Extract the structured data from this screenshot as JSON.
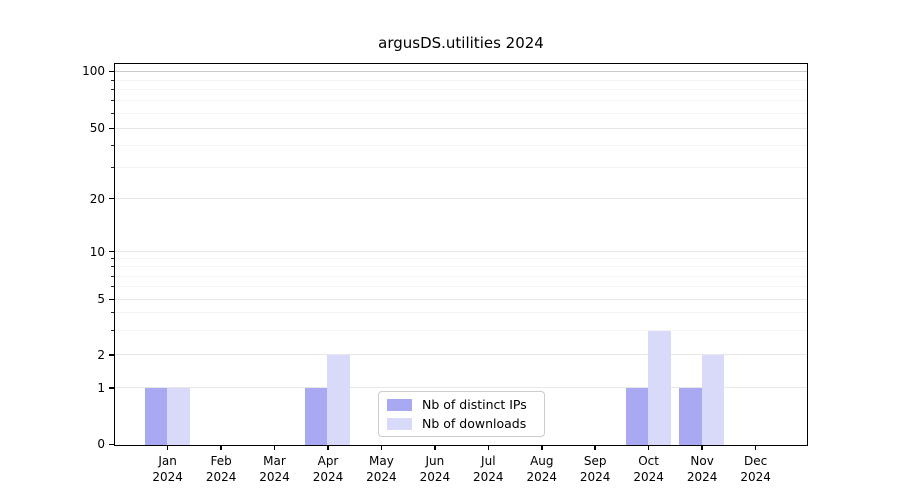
{
  "figure": {
    "background": "#ffffff"
  },
  "chart_data": {
    "type": "bar",
    "title": "argusDS.utilities 2024",
    "categories": [
      {
        "month": "Jan",
        "year": "2024"
      },
      {
        "month": "Feb",
        "year": "2024"
      },
      {
        "month": "Mar",
        "year": "2024"
      },
      {
        "month": "Apr",
        "year": "2024"
      },
      {
        "month": "May",
        "year": "2024"
      },
      {
        "month": "Jun",
        "year": "2024"
      },
      {
        "month": "Jul",
        "year": "2024"
      },
      {
        "month": "Aug",
        "year": "2024"
      },
      {
        "month": "Sep",
        "year": "2024"
      },
      {
        "month": "Oct",
        "year": "2024"
      },
      {
        "month": "Nov",
        "year": "2024"
      },
      {
        "month": "Dec",
        "year": "2024"
      }
    ],
    "series": [
      {
        "name": "Nb of distinct IPs",
        "color": "#a9a9f3",
        "values": [
          1,
          0,
          0,
          1,
          0,
          0,
          0,
          0,
          0,
          1,
          1,
          0
        ]
      },
      {
        "name": "Nb of downloads",
        "color": "#d9d9f9",
        "values": [
          1,
          0,
          0,
          2,
          0,
          0,
          0,
          0,
          0,
          3,
          2,
          0
        ]
      }
    ],
    "ylim": [
      0,
      100
    ],
    "y_axis": {
      "scale": "log-like",
      "ticks": [
        0,
        1,
        2,
        5,
        10,
        20,
        50,
        100
      ],
      "minor_ticks": [
        3,
        4,
        6,
        7,
        8,
        9,
        30,
        40,
        60,
        70,
        80,
        90
      ],
      "scale_anchors": [
        [
          0,
          0
        ],
        [
          1,
          0.149
        ],
        [
          2,
          0.236
        ],
        [
          5,
          0.382
        ],
        [
          10,
          0.508
        ],
        [
          20,
          0.647
        ],
        [
          50,
          0.832
        ],
        [
          100,
          0.982
        ]
      ]
    },
    "grid": {
      "on": true,
      "major_color": "#e7e7e7",
      "minor_color": "#f3f3f3",
      "top_line_color": "#c9c9c9"
    },
    "legend": {
      "position": "lower center",
      "items": [
        "Nb of distinct IPs",
        "Nb of downloads"
      ]
    }
  }
}
